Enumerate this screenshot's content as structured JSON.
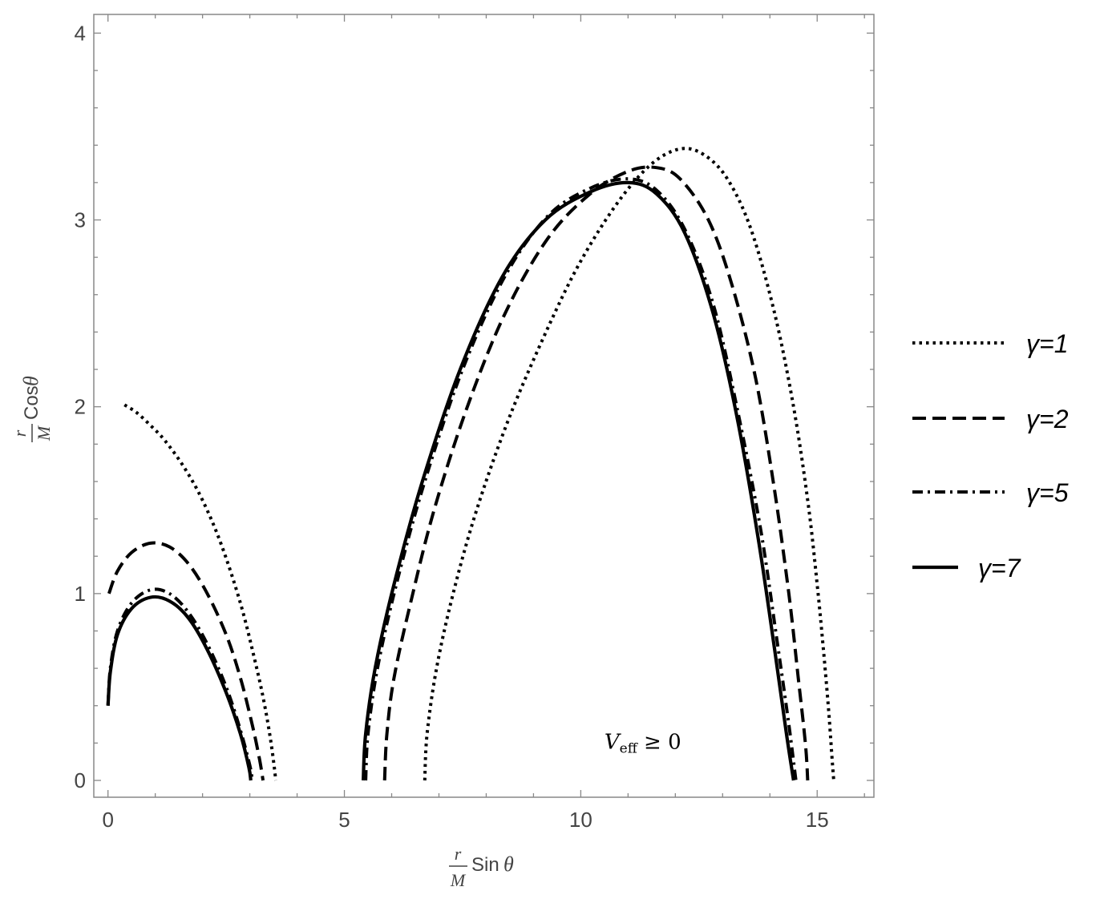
{
  "chart_data": {
    "type": "line",
    "title": "",
    "xlabel": {
      "fraction_num": "r",
      "fraction_den": "M",
      "func": "Sin",
      "var": "θ"
    },
    "ylabel": {
      "fraction_num": "r",
      "fraction_den": "M",
      "func": "Cos",
      "var": "θ"
    },
    "xlim": [
      -0.3,
      16.2
    ],
    "ylim": [
      -0.09,
      4.1
    ],
    "x_ticks": [
      0,
      5,
      10,
      15
    ],
    "x_tick_labels": [
      "0",
      "5",
      "10",
      "15"
    ],
    "y_ticks": [
      0,
      1,
      2,
      3,
      4
    ],
    "y_tick_labels": [
      "0",
      "1",
      "2",
      "3",
      "4"
    ],
    "annotation": {
      "base": "V",
      "sub": "eff",
      "rest": " ≥ 0",
      "x": 10.5,
      "y": 0.2
    },
    "legend_position": "right",
    "series": [
      {
        "name": "γ=1",
        "style": "dotted",
        "inner_curve": [
          [
            0.35,
            2.01
          ],
          [
            0.6,
            1.97
          ],
          [
            0.9,
            1.9
          ],
          [
            1.2,
            1.82
          ],
          [
            1.6,
            1.68
          ],
          [
            2.0,
            1.5
          ],
          [
            2.4,
            1.26
          ],
          [
            2.8,
            0.95
          ],
          [
            3.1,
            0.65
          ],
          [
            3.3,
            0.42
          ],
          [
            3.45,
            0.2
          ],
          [
            3.55,
            0.0
          ]
        ],
        "outer_curve": [
          [
            6.7,
            0.0
          ],
          [
            6.75,
            0.25
          ],
          [
            6.95,
            0.6
          ],
          [
            7.3,
            1.0
          ],
          [
            7.8,
            1.45
          ],
          [
            8.5,
            1.95
          ],
          [
            9.3,
            2.42
          ],
          [
            10.0,
            2.78
          ],
          [
            10.8,
            3.1
          ],
          [
            11.5,
            3.3
          ],
          [
            12.1,
            3.38
          ],
          [
            12.6,
            3.35
          ],
          [
            13.1,
            3.22
          ],
          [
            13.6,
            2.95
          ],
          [
            14.1,
            2.5
          ],
          [
            14.5,
            2.0
          ],
          [
            14.8,
            1.5
          ],
          [
            15.0,
            1.05
          ],
          [
            15.15,
            0.65
          ],
          [
            15.25,
            0.35
          ],
          [
            15.32,
            0.1
          ],
          [
            15.35,
            0.0
          ]
        ]
      },
      {
        "name": "γ=2",
        "style": "dashed",
        "inner_curve": [
          [
            0.02,
            1.0
          ],
          [
            0.2,
            1.12
          ],
          [
            0.5,
            1.22
          ],
          [
            0.9,
            1.27
          ],
          [
            1.3,
            1.25
          ],
          [
            1.7,
            1.16
          ],
          [
            2.1,
            1.0
          ],
          [
            2.5,
            0.78
          ],
          [
            2.8,
            0.55
          ],
          [
            3.05,
            0.3
          ],
          [
            3.2,
            0.12
          ],
          [
            3.28,
            0.0
          ]
        ],
        "outer_curve": [
          [
            5.85,
            0.0
          ],
          [
            5.9,
            0.25
          ],
          [
            6.05,
            0.55
          ],
          [
            6.4,
            0.95
          ],
          [
            6.9,
            1.45
          ],
          [
            7.6,
            2.0
          ],
          [
            8.4,
            2.5
          ],
          [
            9.3,
            2.9
          ],
          [
            10.2,
            3.14
          ],
          [
            11.0,
            3.26
          ],
          [
            11.6,
            3.28
          ],
          [
            12.1,
            3.22
          ],
          [
            12.7,
            3.0
          ],
          [
            13.2,
            2.65
          ],
          [
            13.7,
            2.15
          ],
          [
            14.1,
            1.55
          ],
          [
            14.4,
            1.0
          ],
          [
            14.6,
            0.55
          ],
          [
            14.75,
            0.2
          ],
          [
            14.8,
            0.0
          ]
        ]
      },
      {
        "name": "γ=5",
        "style": "dashdot",
        "inner_curve": [
          [
            0.0,
            0.4
          ],
          [
            0.05,
            0.6
          ],
          [
            0.2,
            0.8
          ],
          [
            0.5,
            0.95
          ],
          [
            0.9,
            1.02
          ],
          [
            1.3,
            1.0
          ],
          [
            1.7,
            0.9
          ],
          [
            2.1,
            0.73
          ],
          [
            2.5,
            0.5
          ],
          [
            2.8,
            0.27
          ],
          [
            3.0,
            0.08
          ],
          [
            3.05,
            0.0
          ]
        ],
        "outer_curve": [
          [
            5.45,
            0.0
          ],
          [
            5.5,
            0.25
          ],
          [
            5.7,
            0.6
          ],
          [
            6.1,
            1.05
          ],
          [
            6.7,
            1.6
          ],
          [
            7.5,
            2.2
          ],
          [
            8.4,
            2.7
          ],
          [
            9.3,
            3.02
          ],
          [
            10.2,
            3.17
          ],
          [
            11.0,
            3.22
          ],
          [
            11.6,
            3.16
          ],
          [
            12.2,
            2.95
          ],
          [
            12.8,
            2.55
          ],
          [
            13.3,
            2.0
          ],
          [
            13.8,
            1.35
          ],
          [
            14.15,
            0.75
          ],
          [
            14.4,
            0.3
          ],
          [
            14.55,
            0.0
          ]
        ]
      },
      {
        "name": "γ=7",
        "style": "solid",
        "inner_curve": [
          [
            0.0,
            0.4
          ],
          [
            0.05,
            0.58
          ],
          [
            0.2,
            0.78
          ],
          [
            0.5,
            0.92
          ],
          [
            0.9,
            0.98
          ],
          [
            1.3,
            0.96
          ],
          [
            1.7,
            0.87
          ],
          [
            2.1,
            0.7
          ],
          [
            2.5,
            0.47
          ],
          [
            2.8,
            0.25
          ],
          [
            2.98,
            0.07
          ],
          [
            3.02,
            0.0
          ]
        ],
        "outer_curve": [
          [
            5.4,
            0.0
          ],
          [
            5.45,
            0.25
          ],
          [
            5.65,
            0.6
          ],
          [
            6.05,
            1.05
          ],
          [
            6.65,
            1.6
          ],
          [
            7.45,
            2.2
          ],
          [
            8.35,
            2.7
          ],
          [
            9.25,
            3.0
          ],
          [
            10.2,
            3.15
          ],
          [
            11.0,
            3.2
          ],
          [
            11.6,
            3.14
          ],
          [
            12.2,
            2.93
          ],
          [
            12.8,
            2.5
          ],
          [
            13.3,
            1.95
          ],
          [
            13.75,
            1.3
          ],
          [
            14.1,
            0.7
          ],
          [
            14.35,
            0.25
          ],
          [
            14.5,
            0.0
          ]
        ]
      }
    ]
  }
}
